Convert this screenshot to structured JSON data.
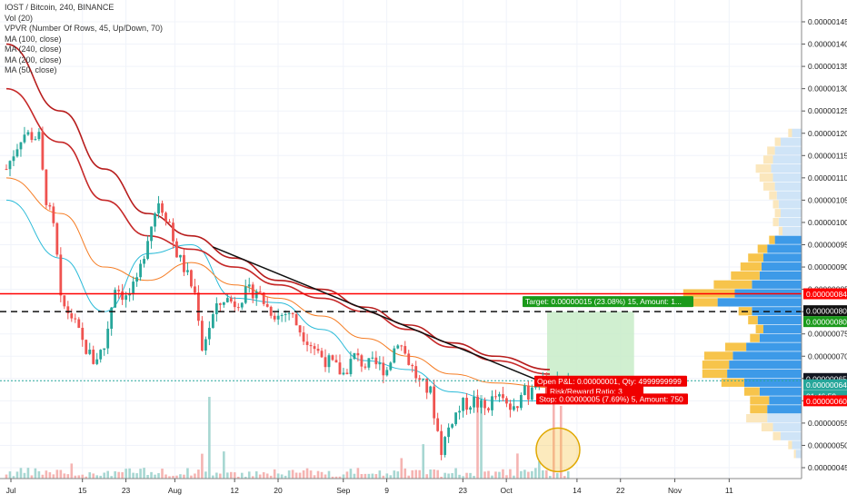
{
  "legend": {
    "symbol": "IOST / Bitcoin, 240, BINANCE",
    "vol": "Vol (20)",
    "vpvr": "VPVR (Number Of Rows, 45, Up/Down, 70)",
    "ma100": "MA (100, close)",
    "ma240": "MA (240, close)",
    "ma200": "MA (200, close)",
    "ma50": "MA (50, close)"
  },
  "price_tags": {
    "resistance": "0.00000084",
    "dashed": "0.00000080",
    "target_level": "0.00000080",
    "last": "0.00000065",
    "last2": "0.00000064",
    "countdown": "01:46:59",
    "stop_level": "0.00000060"
  },
  "position": {
    "target_label": "Target: 0.00000015 (23.08%) 15, Amount: 1... ",
    "open_label": "Open P&L: 0.00000001, Qty: 4999999999",
    "ratio_label": "Risk/Reward Ratio: 3",
    "stop_label": "Stop: 0.00000005 (7.69%) 5, Amount: 750"
  },
  "colors": {
    "up": "#26a69a",
    "down": "#ef5350",
    "ma50": "#2bbbd8",
    "ma100": "#f57c23",
    "ma200": "#c62828",
    "ma240": "#b71c1c",
    "resistance": "#ff0000",
    "vp_up": "#3d9ae8",
    "vp_down": "#f7c44b",
    "target_green": "#1a9a1a",
    "stop_red": "#f00000",
    "circle": "#f5c342"
  },
  "chart_data": {
    "type": "candlestick",
    "title": "IOST / Bitcoin, 240, BINANCE",
    "y_axis": {
      "ticks": [
        "0.00000145",
        "0.00000140",
        "0.00000135",
        "0.00000130",
        "0.00000125",
        "0.00000120",
        "0.00000115",
        "0.00000110",
        "0.00000105",
        "0.00000100",
        "0.00000095",
        "0.00000090",
        "0.00000085",
        "0.00000080",
        "0.00000075",
        "0.00000070",
        "0.00000065",
        "0.00000060",
        "0.00000055",
        "0.00000050",
        "0.00000045"
      ],
      "range": [
        4.2e-07,
        1.48e-06
      ]
    },
    "x_axis": {
      "ticks": [
        "Jul",
        "15",
        "23",
        "Aug",
        "12",
        "20",
        "Sep",
        "9",
        "23",
        "Oct",
        "14",
        "22",
        "Nov",
        "11"
      ]
    },
    "price_path": {
      "x_day": [
        0,
        3,
        6,
        7,
        9,
        10,
        12,
        14,
        16,
        18,
        20,
        22,
        24,
        26,
        28,
        30,
        31,
        33,
        35,
        36,
        38,
        40,
        42,
        44,
        46,
        48,
        50,
        52,
        54,
        56,
        58,
        60,
        62,
        64,
        66,
        68,
        70,
        72,
        74,
        76,
        78,
        80,
        82,
        84,
        86,
        88,
        90,
        92,
        94,
        95,
        96,
        97,
        98,
        99,
        100,
        101,
        102,
        104
      ],
      "close": [
        1.12,
        1.2,
        1.19,
        1.07,
        0.97,
        0.82,
        0.79,
        0.73,
        0.69,
        0.72,
        0.86,
        0.83,
        0.86,
        0.97,
        1.05,
        1.0,
        0.94,
        0.89,
        0.83,
        0.72,
        0.79,
        0.83,
        0.82,
        0.84,
        0.85,
        0.81,
        0.79,
        0.8,
        0.76,
        0.73,
        0.7,
        0.68,
        0.66,
        0.7,
        0.68,
        0.68,
        0.67,
        0.74,
        0.69,
        0.64,
        0.62,
        0.49,
        0.56,
        0.59,
        0.6,
        0.58,
        0.61,
        0.59,
        0.57,
        0.65,
        0.61,
        0.65,
        0.66,
        0.62,
        0.63,
        0.63,
        0.64,
        0.64
      ]
    },
    "moving_averages": [
      {
        "name": "MA (50, close)",
        "x_day": [
          0,
          10,
          18,
          26,
          34,
          42,
          50,
          58,
          66,
          74,
          82,
          90,
          100
        ],
        "y": [
          1.05,
          0.92,
          0.8,
          0.93,
          0.95,
          0.83,
          0.82,
          0.76,
          0.69,
          0.67,
          0.62,
          0.6,
          0.6
        ]
      },
      {
        "name": "MA (100, close)",
        "x_day": [
          0,
          10,
          18,
          26,
          34,
          42,
          50,
          58,
          66,
          74,
          82,
          90,
          100
        ],
        "y": [
          1.1,
          1.02,
          0.9,
          0.87,
          0.91,
          0.86,
          0.83,
          0.79,
          0.74,
          0.7,
          0.66,
          0.64,
          0.63
        ]
      },
      {
        "name": "MA (200, close)",
        "x_day": [
          0,
          10,
          18,
          26,
          34,
          42,
          50,
          58,
          66,
          74,
          82,
          90,
          100
        ],
        "y": [
          1.3,
          1.18,
          1.05,
          0.97,
          0.94,
          0.9,
          0.86,
          0.83,
          0.8,
          0.76,
          0.72,
          0.69,
          0.66
        ]
      },
      {
        "name": "MA (240, close)",
        "x_day": [
          0,
          10,
          18,
          26,
          34,
          42,
          50,
          58,
          66,
          74,
          82,
          90,
          100
        ],
        "y": [
          1.4,
          1.25,
          1.12,
          1.02,
          0.97,
          0.92,
          0.87,
          0.85,
          0.81,
          0.77,
          0.73,
          0.7,
          0.67
        ]
      }
    ],
    "trendline": {
      "from": [
        38,
        0.945
      ],
      "to": [
        104,
        0.615
      ]
    },
    "resistance": 8.4e-07,
    "dashed_level": 8e-07,
    "position": {
      "entry": 6.5e-07,
      "target": 8e-07,
      "stop": 6e-07,
      "risk_reward": 3
    },
    "volume_profile": {
      "price": [
        1.2,
        1.18,
        1.16,
        1.14,
        1.12,
        1.1,
        1.08,
        1.06,
        1.04,
        1.02,
        1.0,
        0.98,
        0.96,
        0.94,
        0.92,
        0.9,
        0.88,
        0.86,
        0.84,
        0.82,
        0.8,
        0.78,
        0.76,
        0.74,
        0.72,
        0.7,
        0.68,
        0.66,
        0.64,
        0.62,
        0.6,
        0.58,
        0.56,
        0.54,
        0.52,
        0.5,
        0.48
      ],
      "up": [
        10,
        22,
        28,
        30,
        32,
        30,
        28,
        26,
        24,
        22,
        24,
        20,
        28,
        36,
        40,
        42,
        44,
        52,
        70,
        88,
        52,
        46,
        40,
        44,
        58,
        72,
        76,
        78,
        60,
        44,
        34,
        36,
        36,
        30,
        22,
        10,
        6
      ],
      "down": [
        4,
        6,
        8,
        10,
        16,
        14,
        12,
        8,
        6,
        6,
        6,
        4,
        6,
        10,
        16,
        22,
        30,
        40,
        54,
        48,
        14,
        10,
        8,
        10,
        22,
        30,
        28,
        26,
        24,
        16,
        20,
        18,
        22,
        12,
        8,
        4,
        2
      ]
    },
    "volume": {
      "note": "volume bars, spikes near Aug 8, Sep 25 and Oct 4"
    }
  }
}
